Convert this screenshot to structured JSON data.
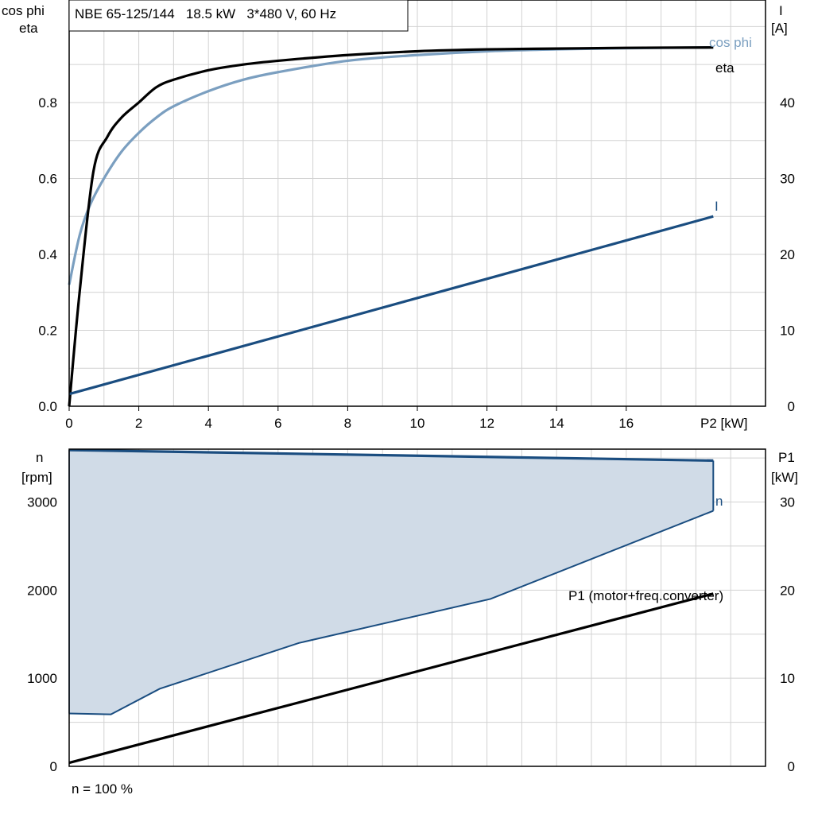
{
  "chart_data": [
    {
      "type": "line",
      "title": "NBE 65-125/144   18.5 kW   3*480 V, 60 Hz",
      "xlabel": "P2 [kW]",
      "ylabel_left": [
        "cos phi",
        "eta"
      ],
      "ylabel_right": [
        "I",
        "[A]"
      ],
      "xlim": [
        0,
        20
      ],
      "ylim_left": [
        0,
        1.07
      ],
      "ylim_right": [
        0,
        53.5
      ],
      "x_ticks": [
        "0",
        "2",
        "4",
        "6",
        "8",
        "10",
        "12",
        "14",
        "16"
      ],
      "y_left_ticks": [
        "0.0",
        "0.2",
        "0.4",
        "0.6",
        "0.8"
      ],
      "y_right_ticks": [
        "0",
        "10",
        "20",
        "30",
        "40"
      ],
      "grid": true,
      "series": [
        {
          "name": "cos phi",
          "axis": "left",
          "color": "#7b9fc0",
          "x": [
            0,
            0.3,
            0.6,
            1.0,
            1.5,
            2.0,
            2.5,
            3.0,
            4.0,
            5.0,
            6.0,
            8.0,
            10.0,
            12.0,
            14.0,
            16.0,
            18.5
          ],
          "y": [
            0.32,
            0.45,
            0.53,
            0.6,
            0.67,
            0.72,
            0.76,
            0.79,
            0.83,
            0.86,
            0.88,
            0.91,
            0.925,
            0.935,
            0.94,
            0.943,
            0.945
          ]
        },
        {
          "name": "eta",
          "axis": "left",
          "color": "#000000",
          "x": [
            0,
            0.3,
            0.7,
            1.1,
            1.5,
            2.0,
            2.5,
            3.0,
            4.0,
            5.0,
            6.0,
            8.0,
            10.0,
            12.0,
            14.0,
            16.0,
            18.5
          ],
          "y": [
            0.0,
            0.3,
            0.62,
            0.71,
            0.76,
            0.8,
            0.84,
            0.86,
            0.885,
            0.9,
            0.91,
            0.925,
            0.935,
            0.94,
            0.942,
            0.944,
            0.945
          ]
        },
        {
          "name": "I",
          "axis": "right",
          "color": "#1a4d80",
          "x": [
            0,
            18.5
          ],
          "y": [
            1.6,
            25
          ]
        }
      ]
    },
    {
      "type": "area",
      "xlabel": "",
      "ylabel_left": [
        "n",
        "[rpm]"
      ],
      "ylabel_right": [
        "P1",
        "[kW]"
      ],
      "xlim": [
        0,
        20
      ],
      "ylim_left": [
        0,
        3600
      ],
      "ylim_right": [
        0,
        36
      ],
      "y_left_ticks": [
        "0",
        "1000",
        "2000",
        "3000"
      ],
      "y_right_ticks": [
        "0",
        "10",
        "20",
        "30"
      ],
      "grid": true,
      "series": [
        {
          "name": "n",
          "axis": "left",
          "color": "#1a4d80",
          "fill": "#d0dbe7",
          "x": [
            0,
            18.5
          ],
          "y": [
            3590,
            3470
          ]
        },
        {
          "name": "",
          "axis": "left",
          "color": "#1a4d80",
          "x": [
            0,
            1.2,
            2.6,
            6.6,
            12.1,
            18.5
          ],
          "y": [
            600,
            590,
            880,
            1400,
            1900,
            2900
          ]
        },
        {
          "name": "P1 (motor+freq.converter)",
          "axis": "right",
          "color": "#000000",
          "x": [
            0,
            18.5
          ],
          "y": [
            0.4,
            19.6
          ]
        }
      ],
      "annotation": "n = 100 %"
    }
  ]
}
